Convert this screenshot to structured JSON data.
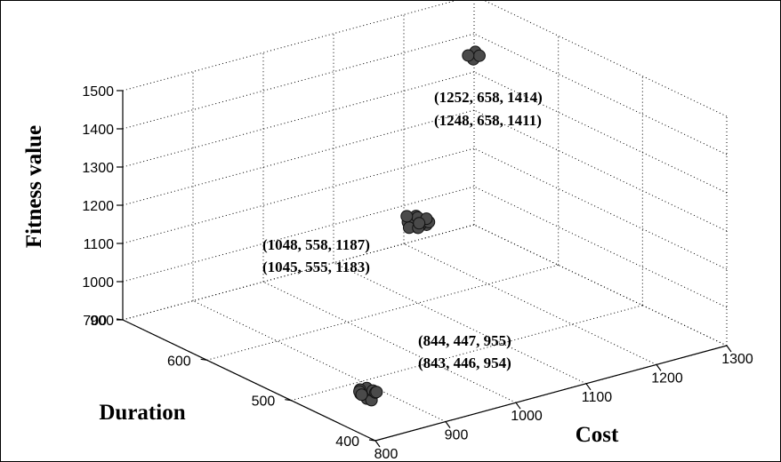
{
  "chart_data": {
    "type": "scatter",
    "dimensions": 3,
    "title": "",
    "xlabel": "Cost",
    "ylabel": "Duration",
    "zlabel": "Fitness value",
    "xlim": [
      800,
      1300
    ],
    "ylim": [
      400,
      700
    ],
    "zlim": [
      900,
      1500
    ],
    "xticks": [
      "800",
      "900",
      "1000",
      "1100",
      "1200",
      "1300"
    ],
    "yticks": [
      "400",
      "500",
      "600",
      "700"
    ],
    "zticks": [
      "900",
      "1000",
      "1100",
      "1200",
      "1300",
      "1400",
      "1500"
    ],
    "grid": true,
    "series": [
      {
        "points": [
          [
            843,
            446,
            954
          ],
          [
            844,
            447,
            955
          ],
          [
            836,
            440,
            950
          ],
          [
            850,
            452,
            958
          ],
          [
            838,
            450,
            962
          ],
          [
            846,
            443,
            948
          ],
          [
            852,
            445,
            956
          ],
          [
            840,
            438,
            946
          ],
          [
            855,
            449,
            952
          ],
          [
            834,
            446,
            957
          ],
          [
            848,
            440,
            960
          ],
          [
            842,
            454,
            951
          ],
          [
            858,
            447,
            949
          ],
          [
            832,
            443,
            959
          ]
        ]
      },
      {
        "points": [
          [
            1045,
            555,
            1183
          ],
          [
            1048,
            558,
            1187
          ],
          [
            1040,
            550,
            1180
          ],
          [
            1052,
            562,
            1192
          ],
          [
            1038,
            560,
            1185
          ],
          [
            1055,
            552,
            1178
          ],
          [
            1042,
            548,
            1190
          ],
          [
            1058,
            565,
            1182
          ],
          [
            1035,
            556,
            1176
          ],
          [
            1050,
            545,
            1195
          ],
          [
            1046,
            568,
            1188
          ],
          [
            1062,
            558,
            1184
          ],
          [
            1036,
            546,
            1186
          ],
          [
            1054,
            560,
            1174
          ]
        ]
      },
      {
        "points": [
          [
            1248,
            658,
            1411
          ],
          [
            1252,
            658,
            1414
          ],
          [
            1245,
            655,
            1408
          ],
          [
            1255,
            661,
            1416
          ],
          [
            1250,
            652,
            1418
          ],
          [
            1246,
            662,
            1410
          ]
        ]
      }
    ],
    "annotations": [
      {
        "text": "(1252, 658, 1414)",
        "anchor": [
          1252,
          658,
          1414
        ]
      },
      {
        "text": "(1248, 658, 1411)",
        "anchor": [
          1248,
          658,
          1411
        ]
      },
      {
        "text": "(1048, 558, 1187)",
        "anchor": [
          1048,
          558,
          1187
        ]
      },
      {
        "text": "(1045, 555, 1183)",
        "anchor": [
          1045,
          555,
          1183
        ]
      },
      {
        "text": "(844, 447, 955)",
        "anchor": [
          844,
          447,
          955
        ]
      },
      {
        "text": "(843, 446, 954)",
        "anchor": [
          843,
          446,
          954
        ]
      }
    ]
  }
}
